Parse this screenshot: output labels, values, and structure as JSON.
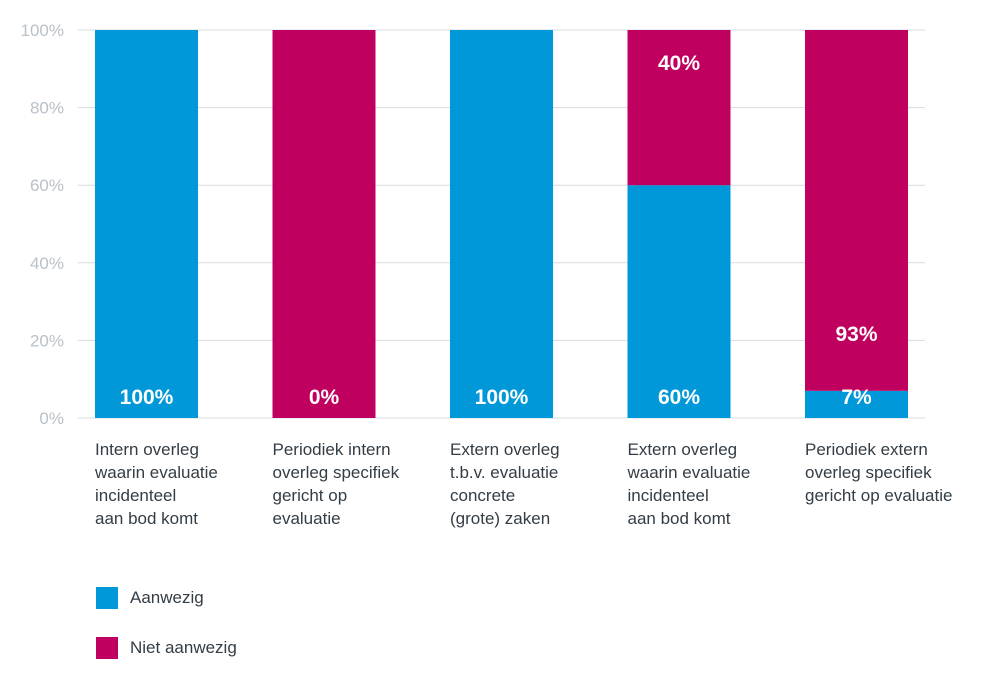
{
  "chart_data": {
    "type": "bar",
    "stacked": true,
    "categories": [
      "Intern overleg\nwaarin evaluatie\nincidenteel\naan bod komt",
      "Periodiek intern\noverleg specifiek\ngericht op\nevaluatie",
      "Extern overleg\nt.b.v. evaluatie\nconcrete\n(grote) zaken",
      "Extern overleg\nwaarin evaluatie\nincidenteel\naan bod komt",
      "Periodiek extern\noverleg specifiek\ngericht op evaluatie"
    ],
    "series": [
      {
        "name": "Aanwezig",
        "values": [
          100,
          0,
          100,
          60,
          7
        ],
        "color": "#0098d8",
        "labels": [
          "100%",
          "0%",
          "100%",
          "60%",
          "7%"
        ]
      },
      {
        "name": "Niet aanwezig",
        "values": [
          0,
          100,
          0,
          40,
          93
        ],
        "color": "#c0005f",
        "labels": [
          "",
          "",
          "",
          "40%",
          "93%"
        ]
      }
    ],
    "ylim": [
      0,
      100
    ],
    "yticks": [
      "0%",
      "20%",
      "40%",
      "60%",
      "80%",
      "100%"
    ],
    "grid": true,
    "legend_position": "bottom-left"
  }
}
